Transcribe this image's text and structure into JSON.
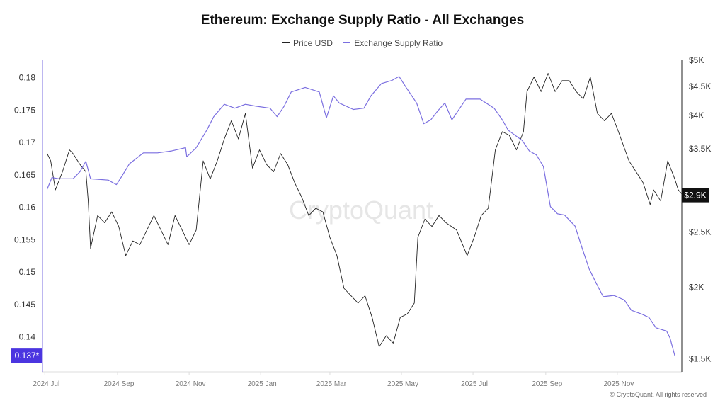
{
  "chart_data": {
    "type": "line",
    "title": "Ethereum: Exchange Supply Ratio - All Exchanges",
    "watermark": "CryptoQuant",
    "copyright": "© CryptoQuant. All rights reserved",
    "legend_placement": "top-center",
    "grid": false,
    "x_ticks": [
      "2024 Jul",
      "2024 Sep",
      "2024 Nov",
      "2025 Jan",
      "2025 Mar",
      "2025 May",
      "2025 Jul",
      "2025 Sep",
      "2025 Nov"
    ],
    "x_tick_dates": [
      "2024-07-01",
      "2024-09-01",
      "2024-11-01",
      "2025-01-01",
      "2025-03-01",
      "2025-05-01",
      "2025-07-01",
      "2025-09-01",
      "2025-11-01"
    ],
    "xlim": [
      "2024-06-29",
      "2025-12-26"
    ],
    "y_left": {
      "ticks": [
        "0.18",
        "0.175",
        "0.17",
        "0.165",
        "0.16",
        "0.155",
        "0.15",
        "0.145",
        "0.14"
      ],
      "tick_values": [
        0.18,
        0.175,
        0.17,
        0.165,
        0.16,
        0.155,
        0.15,
        0.145,
        0.14
      ],
      "ylim": [
        0.1346,
        0.1827
      ],
      "scale": "linear",
      "current_label": "0.137*",
      "current_value": 0.1371
    },
    "y_right": {
      "ticks": [
        "$5K",
        "$4.5K",
        "$4K",
        "$3.5K",
        "$2.5K",
        "$2K",
        "$1.5K"
      ],
      "tick_values": [
        5000,
        4500,
        4000,
        3500,
        2500,
        2000,
        1500
      ],
      "ylim": [
        1422,
        5000
      ],
      "scale": "log",
      "current_label": "$2.9K",
      "current_value": 2900
    },
    "series": [
      {
        "name": "Price USD",
        "axis": "right",
        "color": "#222222",
        "x": [
          "2024-07-03",
          "2024-07-06",
          "2024-07-10",
          "2024-07-16",
          "2024-07-22",
          "2024-07-25",
          "2024-07-31",
          "2024-08-05",
          "2024-08-07",
          "2024-08-09",
          "2024-08-15",
          "2024-08-21",
          "2024-08-27",
          "2024-09-02",
          "2024-09-08",
          "2024-09-14",
          "2024-09-20",
          "2024-09-26",
          "2024-10-02",
          "2024-10-08",
          "2024-10-14",
          "2024-10-20",
          "2024-10-26",
          "2024-11-01",
          "2024-11-07",
          "2024-11-13",
          "2024-11-19",
          "2024-11-25",
          "2024-12-01",
          "2024-12-07",
          "2024-12-13",
          "2024-12-19",
          "2024-12-25",
          "2024-12-31",
          "2025-01-06",
          "2025-01-12",
          "2025-01-18",
          "2025-01-24",
          "2025-01-30",
          "2025-02-05",
          "2025-02-11",
          "2025-02-17",
          "2025-02-23",
          "2025-03-01",
          "2025-03-07",
          "2025-03-13",
          "2025-03-19",
          "2025-03-25",
          "2025-03-31",
          "2025-04-06",
          "2025-04-12",
          "2025-04-18",
          "2025-04-24",
          "2025-04-30",
          "2025-05-06",
          "2025-05-12",
          "2025-05-15",
          "2025-05-21",
          "2025-05-27",
          "2025-06-02",
          "2025-06-08",
          "2025-06-17",
          "2025-06-26",
          "2025-07-02",
          "2025-07-08",
          "2025-07-14",
          "2025-07-20",
          "2025-07-26",
          "2025-08-01",
          "2025-08-07",
          "2025-08-13",
          "2025-08-16",
          "2025-08-22",
          "2025-08-28",
          "2025-09-03",
          "2025-09-09",
          "2025-09-15",
          "2025-09-21",
          "2025-09-27",
          "2025-10-03",
          "2025-10-09",
          "2025-10-15",
          "2025-10-21",
          "2025-10-27",
          "2025-11-02",
          "2025-11-11",
          "2025-11-17",
          "2025-11-23",
          "2025-11-29",
          "2025-12-02",
          "2025-12-08",
          "2025-12-14",
          "2025-12-20",
          "2025-12-23",
          "2025-12-27"
        ],
        "y": [
          3431,
          3331,
          2963,
          3188,
          3482,
          3431,
          3283,
          3188,
          2834,
          2341,
          2672,
          2595,
          2712,
          2557,
          2273,
          2411,
          2376,
          2520,
          2672,
          2520,
          2376,
          2672,
          2520,
          2376,
          2520,
          3331,
          3096,
          3331,
          3640,
          3917,
          3640,
          4034,
          3236,
          3482,
          3283,
          3188,
          3431,
          3283,
          3051,
          2876,
          2672,
          2752,
          2712,
          2447,
          2273,
          1992,
          1933,
          1877,
          1933,
          1771,
          1574,
          1645,
          1597,
          1771,
          1797,
          1877,
          2447,
          2633,
          2557,
          2672,
          2595,
          2520,
          2273,
          2447,
          2672,
          2752,
          3482,
          3748,
          3693,
          3482,
          3748,
          4406,
          4673,
          4406,
          4742,
          4406,
          4605,
          4605,
          4406,
          4278,
          4673,
          4034,
          3917,
          4034,
          3748,
          3331,
          3188,
          3051,
          2793,
          2963,
          2834,
          3331,
          3096,
          2963,
          2900
        ]
      },
      {
        "name": "Exchange Supply Ratio",
        "axis": "left",
        "color": "#7b6fe0",
        "x": [
          "2024-07-03",
          "2024-07-07",
          "2024-07-13",
          "2024-07-25",
          "2024-07-31",
          "2024-08-05",
          "2024-08-09",
          "2024-08-24",
          "2024-08-31",
          "2024-09-05",
          "2024-09-11",
          "2024-09-23",
          "2024-10-05",
          "2024-10-17",
          "2024-10-29",
          "2024-10-30",
          "2024-11-07",
          "2024-11-16",
          "2024-11-22",
          "2024-12-01",
          "2024-12-10",
          "2024-12-19",
          "2024-12-28",
          "2025-01-09",
          "2025-01-15",
          "2025-01-21",
          "2025-01-27",
          "2025-02-08",
          "2025-02-20",
          "2025-02-26",
          "2025-03-04",
          "2025-03-09",
          "2025-03-21",
          "2025-03-30",
          "2025-04-05",
          "2025-04-14",
          "2025-04-23",
          "2025-04-29",
          "2025-05-05",
          "2025-05-14",
          "2025-05-20",
          "2025-05-26",
          "2025-06-01",
          "2025-06-07",
          "2025-06-13",
          "2025-06-25",
          "2025-07-07",
          "2025-07-19",
          "2025-07-26",
          "2025-07-31",
          "2025-08-12",
          "2025-08-18",
          "2025-08-24",
          "2025-08-30",
          "2025-09-05",
          "2025-09-11",
          "2025-09-17",
          "2025-09-26",
          "2025-10-02",
          "2025-10-08",
          "2025-10-14",
          "2025-10-20",
          "2025-10-29",
          "2025-11-07",
          "2025-11-13",
          "2025-11-22",
          "2025-11-28",
          "2025-12-04",
          "2025-12-13",
          "2025-12-16",
          "2025-12-20"
        ],
        "y": [
          0.1628,
          0.1646,
          0.1644,
          0.1644,
          0.1655,
          0.1671,
          0.1644,
          0.1642,
          0.1635,
          0.1649,
          0.1667,
          0.1684,
          0.1684,
          0.1687,
          0.1692,
          0.1678,
          0.1692,
          0.1719,
          0.174,
          0.1759,
          0.1753,
          0.1759,
          0.1756,
          0.1753,
          0.174,
          0.1756,
          0.1778,
          0.1785,
          0.1778,
          0.1738,
          0.1772,
          0.1761,
          0.1751,
          0.1753,
          0.1772,
          0.1791,
          0.1796,
          0.1802,
          0.1785,
          0.1761,
          0.1729,
          0.1735,
          0.1749,
          0.1761,
          0.1735,
          0.1767,
          0.1767,
          0.1753,
          0.1735,
          0.1719,
          0.1703,
          0.1687,
          0.1681,
          0.1663,
          0.1601,
          0.159,
          0.1588,
          0.1571,
          0.1537,
          0.1505,
          0.1483,
          0.1462,
          0.1464,
          0.1457,
          0.1441,
          0.1435,
          0.143,
          0.1414,
          0.1409,
          0.1398,
          0.1371
        ]
      }
    ]
  }
}
